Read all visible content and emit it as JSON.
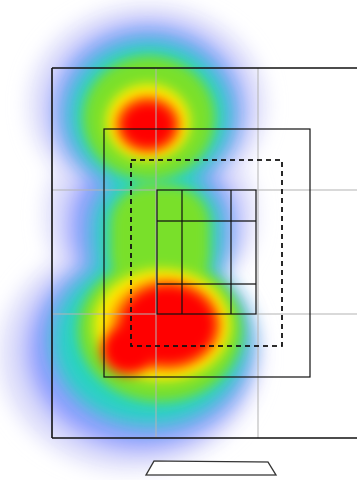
{
  "heatmap": {
    "color_scale": [
      "#ff0000",
      "#ffff00",
      "#66dd22",
      "#00d9b0",
      "#6688ff",
      "#d8d8ff"
    ],
    "hotspots": [
      {
        "name": "upper-hotspot",
        "intensity": 1.0
      },
      {
        "name": "lower-hotspot",
        "intensity": 1.0
      }
    ]
  },
  "colors": {
    "frame": "#111111",
    "grid": "#aaaaaa",
    "background": "#ffffff"
  },
  "icons": {
    "base": "trapezoid-stand-icon"
  }
}
